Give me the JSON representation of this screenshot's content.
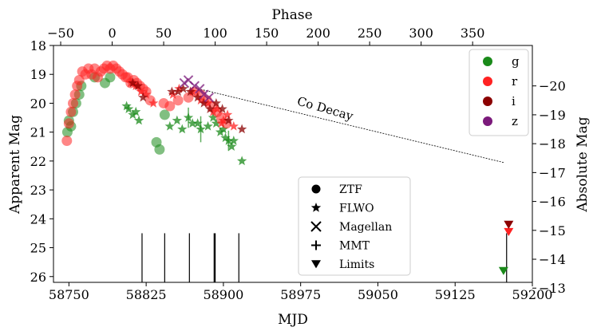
{
  "chart_data": {
    "type": "scatter",
    "title": "",
    "xlabel": "MJD",
    "ylabel": "Apparent Mag",
    "y2label": "Absolute Mag",
    "x2label": "Phase",
    "xlim": [
      58735,
      59200
    ],
    "ylim": [
      26.2,
      18.0
    ],
    "xticks": [
      58750,
      58825,
      58900,
      58975,
      59050,
      59125,
      59200
    ],
    "xticklabels": [
      "58750",
      "58825",
      "58900",
      "58975",
      "59050",
      "59125",
      "59200"
    ],
    "yticks": [
      18,
      19,
      20,
      21,
      22,
      23,
      24,
      25,
      26
    ],
    "yticklabels": [
      "18",
      "19",
      "20",
      "21",
      "22",
      "23",
      "24",
      "25",
      "26"
    ],
    "phase_zero_mjd": 58792,
    "phase_ticks": [
      -50,
      0,
      50,
      100,
      150,
      200,
      250,
      300,
      350
    ],
    "phase_ticklabels": [
      "−50",
      "0",
      "50",
      "100",
      "150",
      "200",
      "250",
      "300",
      "350"
    ],
    "distance_modulus": 39.4,
    "absmag_ticks": [
      -20,
      -19,
      -18,
      -17,
      -16,
      -15,
      -14,
      -13
    ],
    "absmag_ticklabels": [
      "−20",
      "−19",
      "−18",
      "−17",
      "−16",
      "−15",
      "−14",
      "−13"
    ],
    "colors": {
      "g": "#1a8a1a",
      "r": "#ff2222",
      "i": "#8b0000",
      "z": "#7b1a7b"
    },
    "series": [
      {
        "name": "g",
        "instrument": "ZTF",
        "marker": "circle",
        "x": [
          58748.5,
          58750,
          58752,
          58754,
          58757,
          58760,
          58762,
          58775,
          58785,
          58790,
          58835,
          58838,
          58843
        ],
        "y": [
          21.0,
          20.6,
          20.8,
          20.3,
          20.0,
          19.7,
          19.4,
          19.1,
          19.3,
          19.1,
          21.35,
          21.6,
          20.4
        ]
      },
      {
        "name": "g",
        "instrument": "FLWO",
        "marker": "star",
        "x": [
          58806,
          58808,
          58812,
          58815,
          58818,
          58848,
          58855,
          58860,
          58866,
          58870,
          58875,
          58878,
          58885,
          58890,
          58893,
          58897,
          58900,
          58902,
          58905,
          58908,
          58910,
          58918
        ],
        "y": [
          20.1,
          20.2,
          20.4,
          20.3,
          20.6,
          20.8,
          20.6,
          20.9,
          20.5,
          20.7,
          20.7,
          20.9,
          20.8,
          20.5,
          20.7,
          21.0,
          20.9,
          21.2,
          21.3,
          21.5,
          21.3,
          22.0
        ]
      },
      {
        "name": "r",
        "instrument": "ZTF",
        "marker": "circle",
        "x": [
          58748,
          58750,
          58752,
          58754,
          58756,
          58758,
          58760,
          58763,
          58766,
          58769,
          58772,
          58775,
          58778,
          58781,
          58784,
          58787,
          58790,
          58793,
          58796,
          58799,
          58802,
          58805,
          58807,
          58810,
          58813,
          58816,
          58819,
          58822,
          58825,
          58829,
          58842,
          58848,
          58856,
          58866,
          58872,
          58878,
          58884,
          58889,
          58894,
          58898,
          58903
        ],
        "y": [
          21.3,
          20.7,
          20.3,
          20.0,
          19.7,
          19.4,
          19.2,
          18.9,
          19.0,
          18.8,
          19.0,
          18.8,
          19.1,
          18.9,
          18.8,
          18.7,
          18.8,
          18.7,
          18.8,
          18.9,
          19.0,
          19.1,
          19.1,
          19.3,
          19.2,
          19.3,
          19.4,
          19.5,
          19.6,
          19.9,
          20.0,
          20.1,
          19.9,
          19.8,
          19.6,
          19.7,
          19.9,
          20.1,
          20.3,
          20.5,
          20.7
        ]
      },
      {
        "name": "r",
        "instrument": "FLWO",
        "marker": "star",
        "x": [
          58810,
          58815,
          58820,
          58825,
          58832,
          58851,
          58857,
          58870,
          58878,
          58885,
          58890,
          58894,
          58898,
          58900,
          58904,
          58910
        ],
        "y": [
          19.3,
          19.4,
          19.6,
          19.7,
          20.0,
          19.7,
          19.5,
          19.6,
          19.9,
          20.0,
          20.3,
          20.2,
          20.7,
          20.6,
          20.4,
          20.8
        ]
      },
      {
        "name": "r",
        "instrument": "Limits",
        "marker": "triangle-down",
        "x": [
          59177
        ],
        "y": [
          24.45
        ]
      },
      {
        "name": "i",
        "instrument": "FLWO",
        "marker": "star",
        "x": [
          58812,
          58817,
          58822,
          58850,
          58856,
          58861,
          58868,
          58875,
          58881,
          58887,
          58893,
          58899,
          58905,
          58918
        ],
        "y": [
          19.3,
          19.4,
          19.8,
          19.6,
          19.6,
          19.5,
          19.6,
          19.8,
          20.0,
          20.2,
          20.0,
          20.2,
          20.6,
          20.9
        ]
      },
      {
        "name": "i",
        "instrument": "Limits",
        "marker": "triangle-down",
        "x": [
          59177
        ],
        "y": [
          24.2
        ]
      },
      {
        "name": "z",
        "instrument": "Magellan",
        "marker": "x",
        "x": [
          58862,
          58866,
          58872,
          58877,
          58881,
          58886
        ],
        "y": [
          19.3,
          19.2,
          19.4,
          19.5,
          19.7,
          19.8
        ]
      },
      {
        "name": "g",
        "instrument": "Limits",
        "marker": "triangle-down",
        "x": [
          59172
        ],
        "y": [
          25.8
        ]
      }
    ],
    "g_errorbars": [
      {
        "x": 58866,
        "y": 20.5,
        "err": 0.35
      },
      {
        "x": 58878,
        "y": 20.9,
        "err": 0.45
      },
      {
        "x": 58905,
        "y": 21.3,
        "err": 0.35
      }
    ],
    "spectra_epochs": [
      58821,
      58843,
      58867,
      58891,
      58892,
      58915,
      59175
    ],
    "co_decay": {
      "label": "Co Decay",
      "x": [
        58870,
        59172
      ],
      "y": [
        19.45,
        22.05
      ]
    },
    "legend_filters": [
      "g",
      "r",
      "i",
      "z"
    ],
    "legend_instruments": [
      "ZTF",
      "FLWO",
      "Magellan",
      "MMT",
      "Limits"
    ]
  }
}
